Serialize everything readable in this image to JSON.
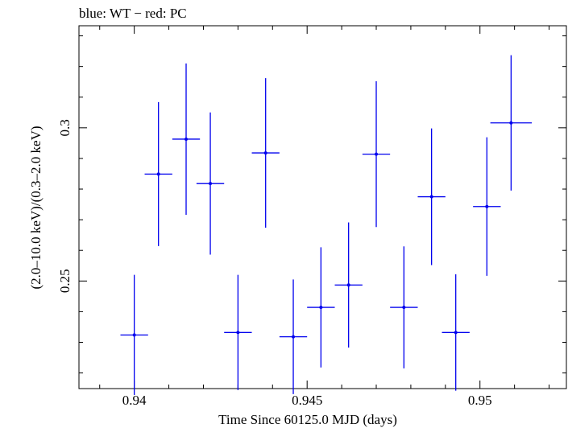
{
  "chart_data": {
    "type": "scatter",
    "title": "blue: WT − red: PC",
    "xlabel": "Time Since 60125.0 MJD (days)",
    "ylabel": "(2.0–10.0 keV)/(0.3–2.0 keV)",
    "xlim": [
      0.9384,
      0.9525
    ],
    "ylim": [
      0.2149,
      0.3333
    ],
    "x_ticks": [
      "0.94",
      "0.945",
      "0.95"
    ],
    "y_ticks": [
      "0.25",
      "0.3"
    ],
    "grid": false,
    "series": [
      {
        "color": "#0000ee",
        "points": [
          {
            "x": 0.94,
            "xerr": 0.0004,
            "y": 0.2324,
            "yerr": 0.0196
          },
          {
            "x": 0.9407,
            "xerr": 0.0004,
            "y": 0.2849,
            "yerr": 0.0235
          },
          {
            "x": 0.9415,
            "xerr": 0.0004,
            "y": 0.2963,
            "yerr": 0.0247
          },
          {
            "x": 0.9422,
            "xerr": 0.0004,
            "y": 0.2818,
            "yerr": 0.0232
          },
          {
            "x": 0.943,
            "xerr": 0.0004,
            "y": 0.2332,
            "yerr": 0.0188
          },
          {
            "x": 0.9438,
            "xerr": 0.0004,
            "y": 0.2918,
            "yerr": 0.0244
          },
          {
            "x": 0.9446,
            "xerr": 0.0004,
            "y": 0.2318,
            "yerr": 0.0187
          },
          {
            "x": 0.9454,
            "xerr": 0.0004,
            "y": 0.2414,
            "yerr": 0.0196
          },
          {
            "x": 0.9462,
            "xerr": 0.0004,
            "y": 0.2487,
            "yerr": 0.0204
          },
          {
            "x": 0.947,
            "xerr": 0.0004,
            "y": 0.2914,
            "yerr": 0.0238
          },
          {
            "x": 0.9478,
            "xerr": 0.0004,
            "y": 0.2414,
            "yerr": 0.0199
          },
          {
            "x": 0.9486,
            "xerr": 0.0004,
            "y": 0.2775,
            "yerr": 0.0223
          },
          {
            "x": 0.9493,
            "xerr": 0.0004,
            "y": 0.2332,
            "yerr": 0.019
          },
          {
            "x": 0.9502,
            "xerr": 0.0004,
            "y": 0.2743,
            "yerr": 0.0226
          },
          {
            "x": 0.9509,
            "xerr": 0.0006,
            "y": 0.3016,
            "yerr": 0.0221
          }
        ]
      }
    ]
  }
}
